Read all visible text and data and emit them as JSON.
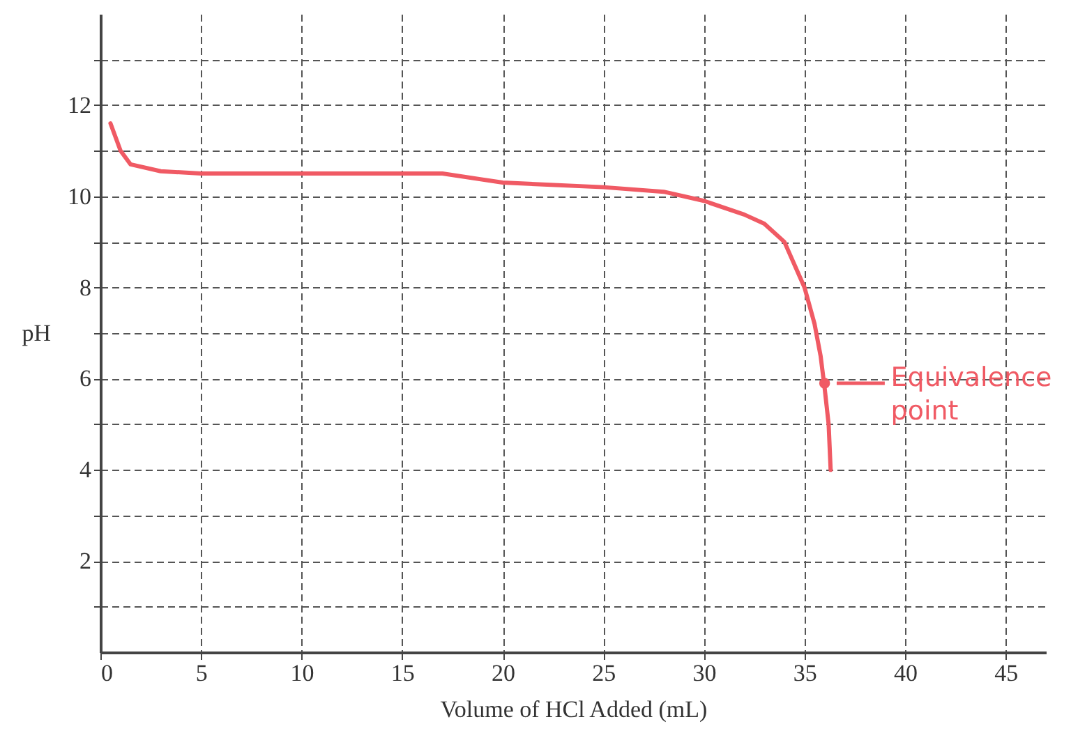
{
  "chart_data": {
    "type": "line",
    "xlabel": "Volume of HCl Added (mL)",
    "ylabel": "pH",
    "x": [
      0.5,
      1.0,
      1.5,
      3,
      5,
      10,
      15,
      17,
      20,
      25,
      28,
      30,
      32,
      33,
      34,
      35,
      35.5,
      35.8,
      36,
      36.2,
      36.3
    ],
    "series": [
      {
        "color": "#f05a64",
        "values": [
          11.6,
          11.0,
          10.7,
          10.55,
          10.5,
          10.5,
          10.5,
          10.5,
          10.3,
          10.2,
          10.1,
          9.9,
          9.6,
          9.4,
          9.0,
          8.0,
          7.2,
          6.5,
          5.8,
          5.0,
          4.0
        ]
      }
    ],
    "xlim": [
      0,
      47
    ],
    "ylim": [
      0,
      14
    ],
    "xticks": [
      0,
      5,
      10,
      15,
      20,
      25,
      30,
      35,
      40,
      45
    ],
    "yticks": [
      {
        "value": 1,
        "label": null
      },
      2,
      {
        "value": 3,
        "label": null
      },
      4,
      {
        "value": 5,
        "label": null
      },
      6,
      {
        "value": 7,
        "label": null
      },
      8,
      {
        "value": 9,
        "label": null
      },
      10,
      {
        "value": 11,
        "label": null
      },
      12,
      {
        "value": 13,
        "label": null
      }
    ],
    "grid": true,
    "marker": "none",
    "line_style": "solid",
    "annotations": [
      {
        "text": "Equivalence point",
        "x": 36,
        "y": 5.9
      }
    ]
  }
}
